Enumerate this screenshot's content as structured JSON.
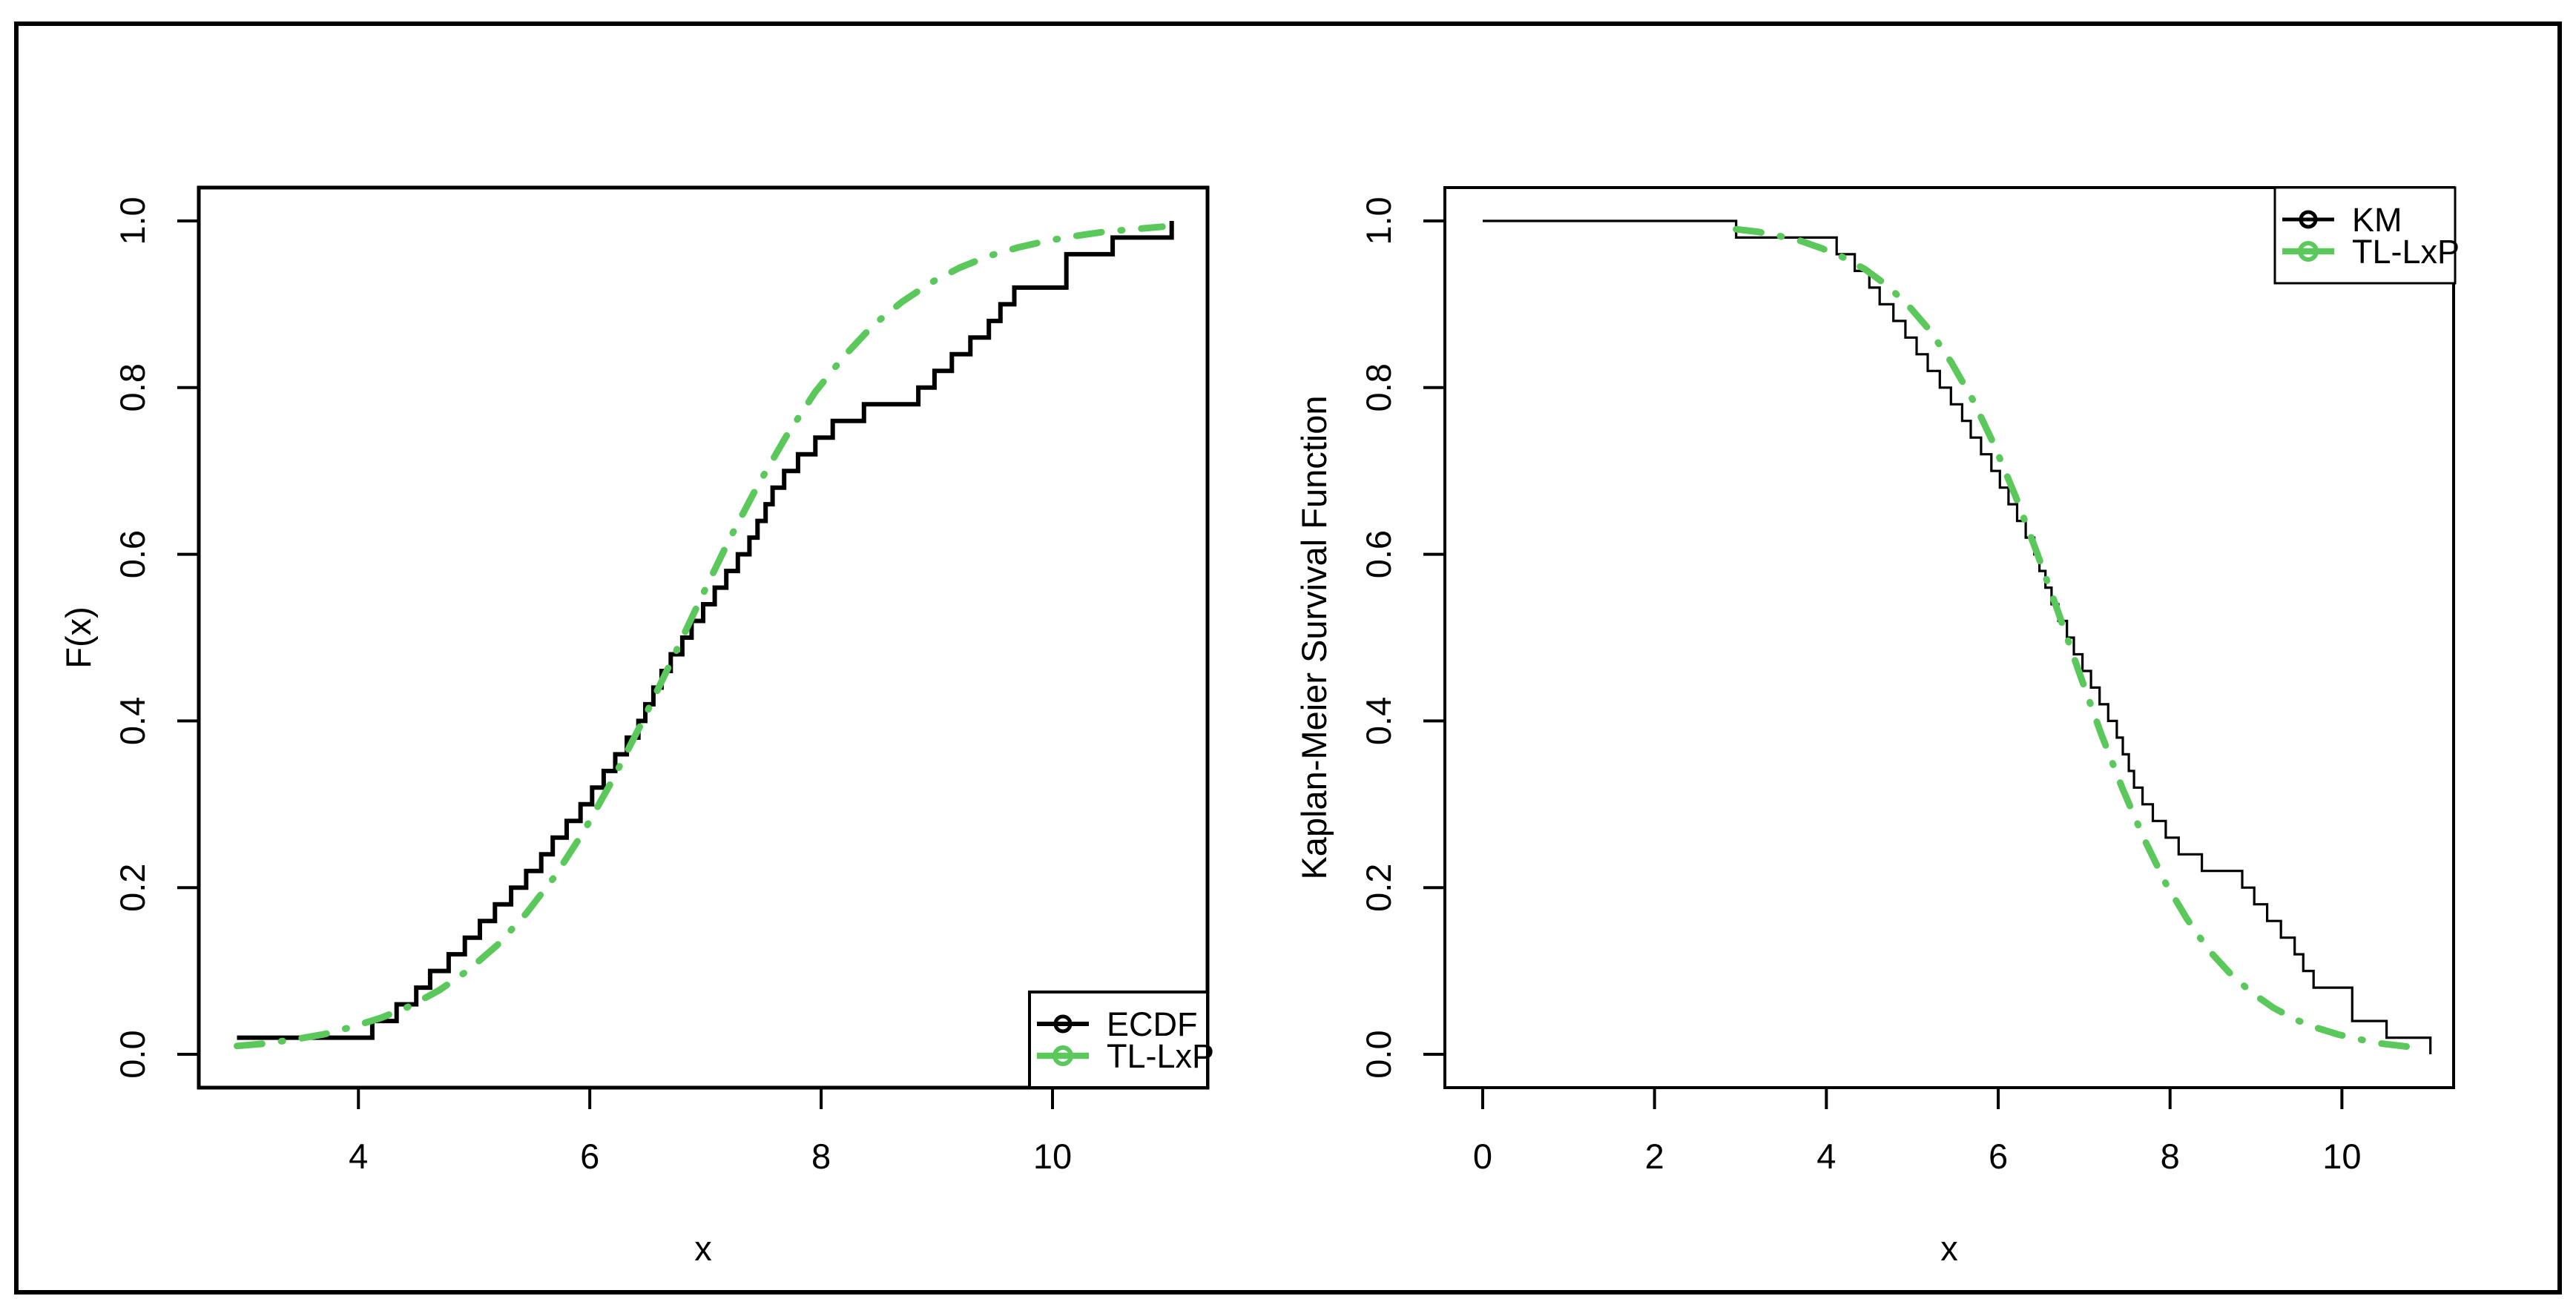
{
  "figure": {
    "background": "#ffffff",
    "frame_color": "#000000",
    "accent_green": "#5BC85B",
    "black": "#000000"
  },
  "chart_data": [
    {
      "id": "ecdf-fit-panel",
      "type": "line",
      "title": "",
      "xlabel": "x",
      "ylabel": "F(x)",
      "xlim": [
        2.62,
        11.34
      ],
      "ylim": [
        -0.04,
        1.04
      ],
      "xticks": [
        4,
        6,
        8,
        10
      ],
      "xtick_labels": [
        "4",
        "6",
        "8",
        "10"
      ],
      "yticks": [
        0.0,
        0.2,
        0.4,
        0.6,
        0.8,
        1.0
      ],
      "ytick_labels": [
        "0.0",
        "0.2",
        "0.4",
        "0.6",
        "0.8",
        "1.0"
      ],
      "grid": false,
      "legend": {
        "position": "bottomright",
        "entries": [
          {
            "label": "ECDF",
            "color": "#000000",
            "marker": "open-circle",
            "line": "solid"
          },
          {
            "label": "TL-LxP",
            "color": "#5BC85B",
            "marker": "open-circle",
            "line": "dotdash"
          }
        ]
      },
      "series": [
        {
          "name": "ECDF",
          "kind": "step-cdf",
          "color": "#000000",
          "width": 6,
          "n": 50,
          "sample": [
            2.95,
            4.12,
            4.33,
            4.5,
            4.62,
            4.78,
            4.92,
            5.05,
            5.18,
            5.32,
            5.45,
            5.58,
            5.68,
            5.8,
            5.92,
            6.02,
            6.12,
            6.22,
            6.32,
            6.42,
            6.48,
            6.55,
            6.62,
            6.7,
            6.8,
            6.88,
            6.98,
            7.08,
            7.18,
            7.28,
            7.38,
            7.45,
            7.52,
            7.58,
            7.68,
            7.8,
            7.95,
            8.1,
            8.37,
            8.84,
            8.98,
            9.13,
            9.29,
            9.45,
            9.55,
            9.67,
            10.12,
            10.12,
            10.52,
            11.03
          ]
        },
        {
          "name": "TL-LxP",
          "kind": "smooth",
          "color": "#5BC85B",
          "width": 9,
          "dash": "dotdash",
          "x_start": 2.95,
          "x_step": 0.25,
          "y": [
            0.01,
            0.013,
            0.018,
            0.024,
            0.033,
            0.044,
            0.058,
            0.077,
            0.101,
            0.131,
            0.169,
            0.214,
            0.268,
            0.33,
            0.398,
            0.47,
            0.544,
            0.616,
            0.682,
            0.742,
            0.795,
            0.838,
            0.875,
            0.903,
            0.926,
            0.944,
            0.958,
            0.968,
            0.976,
            0.982,
            0.987,
            0.99,
            0.993
          ]
        }
      ]
    },
    {
      "id": "km-fit-panel",
      "type": "line",
      "title": "",
      "xlabel": "x",
      "ylabel": "Kaplan-Meier Survival Function",
      "xlim": [
        -0.44,
        11.3
      ],
      "ylim": [
        -0.04,
        1.04
      ],
      "xticks": [
        0,
        2,
        4,
        6,
        8,
        10
      ],
      "xtick_labels": [
        "0",
        "2",
        "4",
        "6",
        "8",
        "10"
      ],
      "yticks": [
        0.0,
        0.2,
        0.4,
        0.6,
        0.8,
        1.0
      ],
      "ytick_labels": [
        "0.0",
        "0.2",
        "0.4",
        "0.6",
        "0.8",
        "1.0"
      ],
      "grid": false,
      "legend": {
        "position": "topright",
        "entries": [
          {
            "label": "KM",
            "color": "#000000",
            "marker": "open-circle",
            "line": "solid"
          },
          {
            "label": "TL-LxP",
            "color": "#5BC85B",
            "marker": "open-circle",
            "line": "dotdash"
          }
        ]
      },
      "series": [
        {
          "name": "KM",
          "kind": "step-survival",
          "color": "#000000",
          "width": 3.2,
          "n": 50,
          "start_x": 0,
          "sample": [
            2.95,
            4.12,
            4.33,
            4.5,
            4.62,
            4.78,
            4.92,
            5.05,
            5.18,
            5.32,
            5.45,
            5.58,
            5.68,
            5.8,
            5.92,
            6.02,
            6.12,
            6.22,
            6.32,
            6.42,
            6.48,
            6.55,
            6.62,
            6.7,
            6.8,
            6.88,
            6.98,
            7.08,
            7.18,
            7.28,
            7.38,
            7.45,
            7.52,
            7.58,
            7.68,
            7.8,
            7.95,
            8.1,
            8.37,
            8.84,
            8.98,
            9.13,
            9.29,
            9.45,
            9.55,
            9.67,
            10.12,
            10.12,
            10.52,
            11.03
          ]
        },
        {
          "name": "TL-LxP",
          "kind": "smooth",
          "color": "#5BC85B",
          "width": 9,
          "dash": "dotdash",
          "x_start": 2.95,
          "x_step": 0.25,
          "y": [
            0.99,
            0.987,
            0.982,
            0.976,
            0.967,
            0.956,
            0.942,
            0.923,
            0.899,
            0.869,
            0.831,
            0.786,
            0.732,
            0.67,
            0.602,
            0.53,
            0.456,
            0.384,
            0.318,
            0.258,
            0.205,
            0.162,
            0.125,
            0.097,
            0.074,
            0.056,
            0.042,
            0.032,
            0.024,
            0.018,
            0.013,
            0.01,
            0.007
          ]
        }
      ]
    }
  ]
}
